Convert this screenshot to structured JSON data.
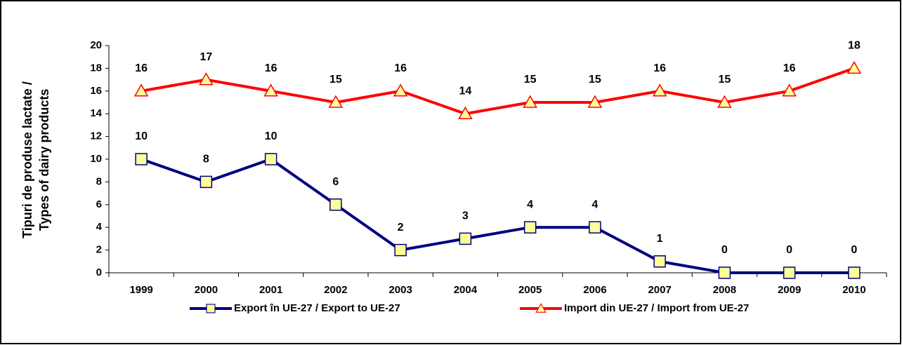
{
  "chart_data": {
    "type": "line",
    "ylabel": [
      "Tipuri de produse lactate /",
      "Types of dairy products"
    ],
    "categories": [
      "1999",
      "2000",
      "2001",
      "2002",
      "2003",
      "2004",
      "2005",
      "2006",
      "2007",
      "2008",
      "2009",
      "2010"
    ],
    "series": [
      {
        "name": "Export în UE-27 / Export to UE-27",
        "color": "#000080",
        "marker": "square",
        "marker_color": "#ffff99",
        "values": [
          10,
          8,
          10,
          6,
          2,
          3,
          4,
          4,
          1,
          0,
          0,
          0
        ]
      },
      {
        "name": "Import din UE-27 / Import from UE-27",
        "color": "#ff0000",
        "marker": "triangle",
        "marker_color": "#ffff99",
        "values": [
          16,
          17,
          16,
          15,
          16,
          14,
          15,
          15,
          16,
          15,
          16,
          18
        ]
      }
    ],
    "ylim": [
      0,
      20
    ],
    "yticks": [
      0,
      2,
      4,
      6,
      8,
      10,
      12,
      14,
      16,
      18,
      20
    ],
    "legend": "bottom"
  }
}
